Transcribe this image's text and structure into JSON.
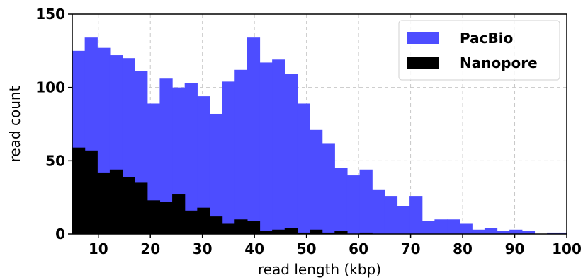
{
  "chart_data": {
    "type": "bar",
    "title": "",
    "xlabel": "read length (kbp)",
    "ylabel": "read count",
    "xlim": [
      5,
      100
    ],
    "ylim": [
      0,
      150
    ],
    "xticks": [
      10,
      20,
      30,
      40,
      50,
      60,
      70,
      80,
      90,
      100
    ],
    "yticks": [
      0,
      50,
      100,
      150
    ],
    "grid": true,
    "legend_position": "top-right",
    "bin_width_kbp": 2.4,
    "bin_starts": [
      5,
      7.4,
      9.8,
      12.2,
      14.6,
      17,
      19.4,
      21.8,
      24.2,
      26.6,
      29,
      31.4,
      33.8,
      36.2,
      38.6,
      41,
      43.4,
      45.8,
      48.2,
      50.6,
      53,
      55.4,
      57.8,
      60.2,
      62.6,
      65,
      67.4,
      69.8,
      72.2,
      74.6,
      77,
      79.4,
      81.8,
      84.2,
      86.6,
      89,
      91.4,
      93.8,
      96.2,
      98.6
    ],
    "series": [
      {
        "name": "PacBio",
        "color": "#4d4dff",
        "values": [
          125,
          134,
          127,
          122,
          120,
          111,
          89,
          106,
          100,
          103,
          94,
          82,
          104,
          112,
          134,
          117,
          119,
          109,
          89,
          71,
          62,
          45,
          40,
          44,
          30,
          26,
          19,
          26,
          9,
          10,
          10,
          7,
          3,
          4,
          2,
          3,
          2,
          0,
          1,
          1
        ]
      },
      {
        "name": "Nanopore",
        "color": "#000000",
        "values": [
          59,
          57,
          42,
          44,
          39,
          35,
          23,
          22,
          27,
          16,
          18,
          12,
          7,
          10,
          9,
          2,
          3,
          4,
          1,
          3,
          1,
          2,
          0,
          1,
          0,
          0,
          0,
          0,
          0,
          0,
          0,
          0,
          0,
          0,
          0,
          0,
          0,
          0,
          0,
          0
        ]
      }
    ]
  }
}
